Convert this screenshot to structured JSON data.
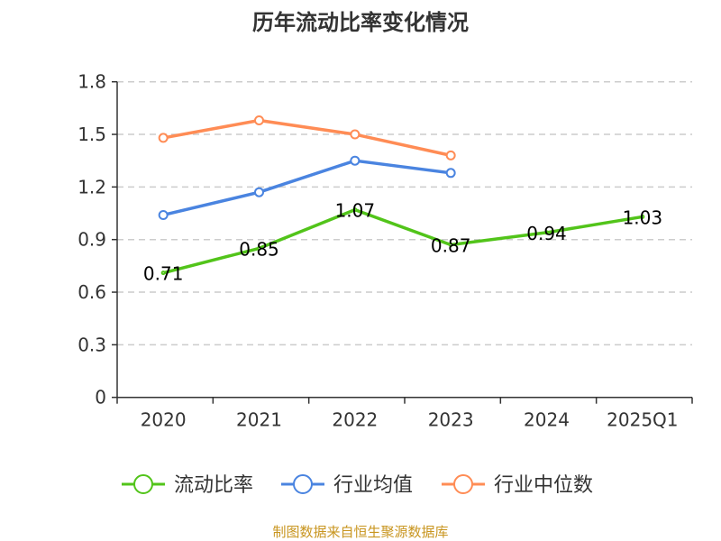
{
  "chart_data": {
    "type": "line",
    "title": "历年流动比率变化情况",
    "categories": [
      "2020",
      "2021",
      "2022",
      "2023",
      "2024",
      "2025Q1"
    ],
    "ylim": [
      0,
      1.8
    ],
    "yticks": [
      "0",
      "0.3",
      "0.6",
      "0.9",
      "1.2",
      "1.5",
      "1.8"
    ],
    "grid": true,
    "legend_position": "bottom",
    "series": [
      {
        "name": "流动比率",
        "color": "#52c41a",
        "values": [
          0.71,
          0.85,
          1.07,
          0.87,
          0.94,
          1.03
        ],
        "labels": [
          "0.71",
          "0.85",
          "1.07",
          "0.87",
          "0.94",
          "1.03"
        ],
        "show_labels": true
      },
      {
        "name": "行业均值",
        "color": "#4a84e0",
        "values": [
          1.04,
          1.17,
          1.35,
          1.28,
          null,
          null
        ],
        "show_labels": false
      },
      {
        "name": "行业中位数",
        "color": "#ff8c55",
        "values": [
          1.48,
          1.58,
          1.5,
          1.38,
          null,
          null
        ],
        "show_labels": false
      }
    ]
  },
  "source": "制图数据来自恒生聚源数据库"
}
